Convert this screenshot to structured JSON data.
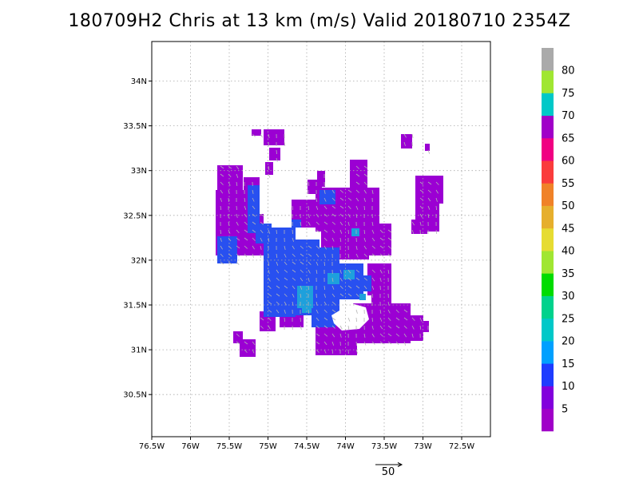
{
  "title": "180709H2 Chris at 13 km (m/s) Valid 20180710 2354Z",
  "map": {
    "lon_ticks": [
      "76.5W",
      "76W",
      "75.5W",
      "75W",
      "74.5W",
      "74W",
      "73.5W",
      "73W",
      "72.5W"
    ],
    "lat_ticks": [
      "34N",
      "33.5N",
      "33N",
      "32.5N",
      "32N",
      "31.5N",
      "31N",
      "30.5N"
    ],
    "grid": true
  },
  "colorbar": {
    "labels": [
      "5",
      "10",
      "15",
      "20",
      "25",
      "30",
      "35",
      "40",
      "45",
      "50",
      "55",
      "60",
      "65",
      "70",
      "75",
      "80"
    ],
    "colors": [
      "#a000c8",
      "#8200dc",
      "#1e3cff",
      "#00a0ff",
      "#00c8c8",
      "#00d28c",
      "#00dc00",
      "#a0e632",
      "#e6dc32",
      "#e6af2d",
      "#f08228",
      "#fa3c3c",
      "#f00082",
      "#a000c8",
      "#00c8c8",
      "#a0e632",
      "#aaaaaa"
    ]
  },
  "wind_reference": {
    "label": "50"
  },
  "wind_colors": {
    "purple": "#9b00d3",
    "blue": "#2850f0",
    "cyan": "#1ea0dc"
  }
}
